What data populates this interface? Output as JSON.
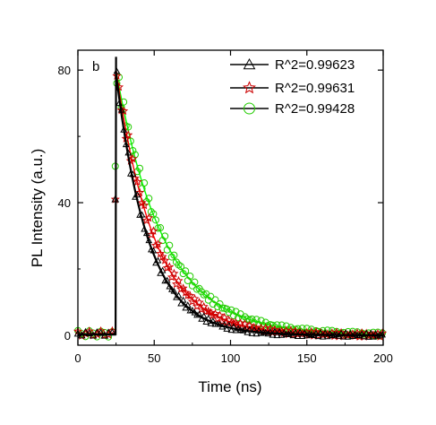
{
  "chart_data": {
    "type": "scatter",
    "panel_label": "b",
    "xlabel": "Time (ns)",
    "ylabel": "PL Intensity (a.u.)",
    "xlim": [
      0,
      200
    ],
    "ylim": [
      -3,
      86
    ],
    "xticks": [
      0,
      50,
      100,
      150,
      200
    ],
    "yticks": [
      0,
      40,
      80
    ],
    "legend_placement": "top-right",
    "grid": false,
    "peak_time": 25,
    "series": [
      {
        "name": "R^2=0.99623",
        "marker": "triangle",
        "color": "#000000",
        "fit_color": "#000000",
        "amplitude": 79,
        "tau": 21
      },
      {
        "name": "R^2=0.99631",
        "marker": "star",
        "color": "#cc0000",
        "fit_color": "#ff0000",
        "amplitude": 80,
        "tau": 25
      },
      {
        "name": "R^2=0.99428",
        "marker": "circle",
        "color": "#22cc00",
        "fit_color": "#00ff00",
        "amplitude": 80,
        "tau": 31
      }
    ]
  }
}
